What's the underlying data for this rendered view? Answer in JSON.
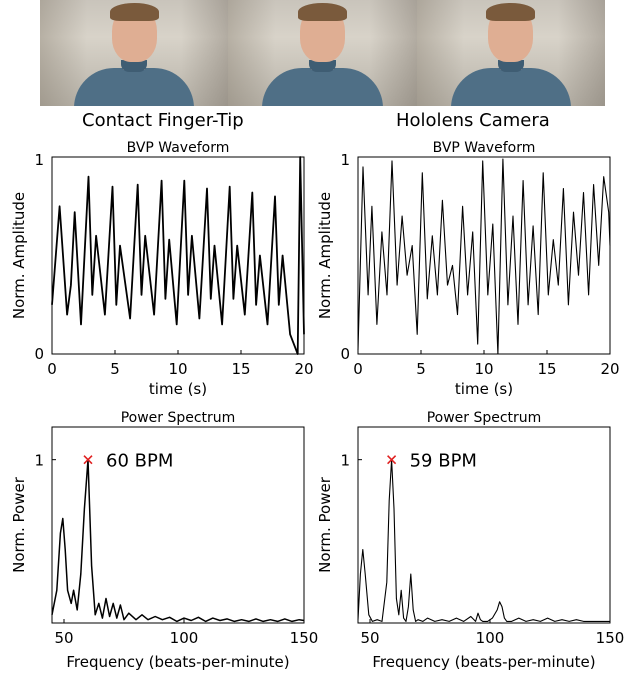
{
  "column_titles": [
    "Contact Finger-Tip",
    "Hololens Camera"
  ],
  "chart_data": [
    {
      "type": "line",
      "title": "BVP Waveform",
      "xlabel": "time (s)",
      "ylabel": "Norm. Amplitude",
      "xlim": [
        0,
        20
      ],
      "ylim": [
        0,
        1
      ],
      "xticks": [
        "0",
        "5",
        "10",
        "15",
        "20"
      ],
      "yticks": [
        "0",
        "1"
      ],
      "series": [
        {
          "x": [
            0.0,
            0.6,
            1.2,
            1.5,
            1.8,
            2.3,
            2.9,
            3.2,
            3.5,
            4.2,
            4.8,
            5.1,
            5.4,
            6.2,
            6.8,
            7.1,
            7.4,
            8.1,
            8.7,
            9.0,
            9.3,
            9.9,
            10.5,
            10.8,
            11.1,
            11.7,
            12.3,
            12.6,
            12.9,
            13.5,
            14.1,
            14.4,
            14.7,
            15.3,
            15.9,
            16.2,
            16.5,
            17.1,
            17.7,
            18.0,
            18.3,
            18.9,
            19.5,
            19.7,
            20.0
          ],
          "y": [
            0.25,
            0.75,
            0.2,
            0.35,
            0.72,
            0.15,
            0.9,
            0.3,
            0.6,
            0.2,
            0.85,
            0.25,
            0.55,
            0.18,
            0.86,
            0.3,
            0.6,
            0.2,
            0.88,
            0.28,
            0.58,
            0.15,
            0.88,
            0.3,
            0.6,
            0.18,
            0.84,
            0.28,
            0.55,
            0.15,
            0.85,
            0.28,
            0.55,
            0.2,
            0.82,
            0.25,
            0.5,
            0.15,
            0.8,
            0.25,
            0.5,
            0.1,
            0.0,
            1.0,
            0.1
          ]
        }
      ]
    },
    {
      "type": "line",
      "title": "BVP Waveform",
      "xlabel": "time (s)",
      "ylabel": "Norm. Amplitude",
      "xlim": [
        0,
        20
      ],
      "ylim": [
        0,
        1
      ],
      "xticks": [
        "0",
        "5",
        "10",
        "15",
        "20"
      ],
      "yticks": [
        "0",
        "1"
      ],
      "series": [
        {
          "x": [
            0.0,
            0.4,
            0.8,
            1.1,
            1.5,
            1.9,
            2.3,
            2.7,
            3.1,
            3.5,
            3.9,
            4.3,
            4.7,
            5.1,
            5.5,
            5.9,
            6.3,
            6.7,
            7.1,
            7.5,
            7.9,
            8.3,
            8.7,
            9.1,
            9.5,
            9.9,
            10.3,
            10.7,
            11.1,
            11.5,
            11.9,
            12.3,
            12.7,
            13.1,
            13.5,
            13.9,
            14.3,
            14.7,
            15.1,
            15.5,
            15.9,
            16.3,
            16.7,
            17.1,
            17.5,
            17.9,
            18.3,
            18.7,
            19.1,
            19.5,
            19.9,
            20.0
          ],
          "y": [
            0.02,
            0.95,
            0.3,
            0.75,
            0.15,
            0.62,
            0.3,
            0.98,
            0.35,
            0.7,
            0.4,
            0.55,
            0.1,
            0.92,
            0.28,
            0.6,
            0.3,
            0.78,
            0.35,
            0.45,
            0.2,
            0.75,
            0.3,
            0.62,
            0.05,
            0.98,
            0.3,
            0.66,
            0.0,
            0.99,
            0.25,
            0.7,
            0.15,
            0.88,
            0.25,
            0.65,
            0.2,
            0.92,
            0.3,
            0.58,
            0.35,
            0.84,
            0.25,
            0.72,
            0.4,
            0.82,
            0.3,
            0.86,
            0.45,
            0.9,
            0.72,
            0.55
          ]
        }
      ]
    },
    {
      "type": "line",
      "title": "Power Spectrum",
      "xlabel": "Frequency (beats-per-minute)",
      "ylabel": "Norm. Power",
      "xlim": [
        45,
        150
      ],
      "ylim": [
        0,
        1.2
      ],
      "xticks": [
        "50",
        "100",
        "150"
      ],
      "yticks": [
        "1"
      ],
      "peak": {
        "x": 60,
        "y": 1.0,
        "label": "60 BPM",
        "marker": "x",
        "color": "#e02020"
      },
      "series": [
        {
          "x": [
            45,
            47,
            48.5,
            49.5,
            50.5,
            51.5,
            53,
            54,
            55.5,
            57,
            58.5,
            60,
            61.5,
            63,
            64.5,
            66,
            67.5,
            69,
            70.5,
            72,
            73.5,
            75,
            77,
            80,
            82.5,
            85,
            88,
            91,
            94,
            97,
            100,
            103,
            106,
            109,
            112,
            115,
            118,
            121,
            124,
            127,
            130,
            133,
            136,
            139,
            142,
            145,
            148,
            150
          ],
          "y": [
            0.05,
            0.2,
            0.55,
            0.64,
            0.45,
            0.2,
            0.12,
            0.2,
            0.08,
            0.3,
            0.7,
            1.0,
            0.35,
            0.05,
            0.12,
            0.03,
            0.15,
            0.04,
            0.12,
            0.03,
            0.11,
            0.02,
            0.06,
            0.02,
            0.05,
            0.02,
            0.04,
            0.02,
            0.035,
            0.01,
            0.03,
            0.015,
            0.035,
            0.01,
            0.03,
            0.015,
            0.025,
            0.01,
            0.02,
            0.01,
            0.025,
            0.01,
            0.02,
            0.01,
            0.025,
            0.01,
            0.02,
            0.015
          ]
        }
      ]
    },
    {
      "type": "line",
      "title": "Power Spectrum",
      "xlabel": "Frequency (beats-per-minute)",
      "ylabel": "Norm. Power",
      "xlim": [
        45,
        150
      ],
      "ylim": [
        0,
        1.2
      ],
      "xticks": [
        "50",
        "100",
        "150"
      ],
      "yticks": [
        "1"
      ],
      "peak": {
        "x": 59,
        "y": 1.0,
        "label": "59 BPM",
        "marker": "x",
        "color": "#e02020"
      },
      "series": [
        {
          "x": [
            45,
            46,
            47,
            48,
            49.5,
            51,
            53,
            55,
            57,
            58,
            59,
            60,
            61,
            62,
            63,
            64,
            65,
            66,
            67,
            68,
            69,
            70,
            72,
            74,
            77,
            80,
            83,
            86,
            89,
            92,
            94,
            95,
            96,
            97,
            99,
            101,
            103,
            104,
            105,
            106,
            107,
            109,
            112,
            115,
            118,
            121,
            124,
            127,
            130,
            133,
            136,
            139,
            142,
            145,
            148,
            150
          ],
          "y": [
            0.02,
            0.3,
            0.45,
            0.3,
            0.05,
            0.01,
            0.02,
            0.01,
            0.25,
            0.75,
            1.0,
            0.7,
            0.15,
            0.05,
            0.2,
            0.03,
            0.01,
            0.1,
            0.3,
            0.08,
            0.01,
            0.02,
            0.01,
            0.03,
            0.01,
            0.02,
            0.01,
            0.03,
            0.01,
            0.04,
            0.01,
            0.06,
            0.02,
            0.01,
            0.01,
            0.03,
            0.08,
            0.13,
            0.1,
            0.03,
            0.01,
            0.01,
            0.03,
            0.01,
            0.02,
            0.01,
            0.03,
            0.01,
            0.02,
            0.01,
            0.02,
            0.01,
            0.01,
            0.01,
            0.01,
            0.01
          ]
        }
      ]
    }
  ]
}
